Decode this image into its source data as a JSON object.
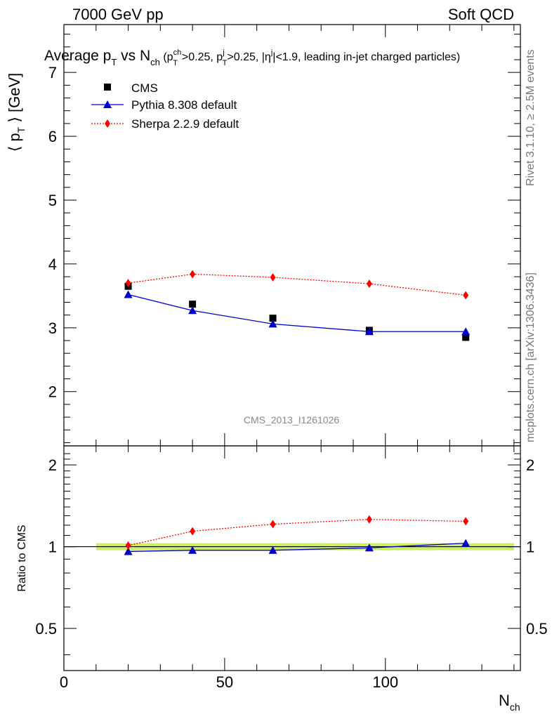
{
  "header": {
    "left": "7000 GeV pp",
    "right": "Soft QCD"
  },
  "side_labels": {
    "rivet": "Rivet 3.1.10, ≥ 2.5M events",
    "mcplots": "mcplots.cern.ch [arXiv:1306.3436]"
  },
  "chart_data": [
    {
      "type": "scatter",
      "title": "Average pT vs Nch (pTch>0.25, pTj>0.25, |ηj|<1.9, leading in-jet charged particles)",
      "title_parts": {
        "main": "Average p",
        "sub_t": "T",
        "vs": " vs N",
        "sub_ch": "ch",
        "cond_a": " (p",
        "cond_sup_ch": "ch",
        "cond_sub_t1": "T",
        "cond_b": ">0.25, p",
        "cond_sup_j": "j",
        "cond_sub_t2": "T",
        "cond_c": ">0.25, |η",
        "cond_sup_j2": "j",
        "cond_d": "|<1.9, leading in-jet charged particles)"
      },
      "ylabel": "⟨ pT ⟩ [GeV]",
      "ylabel_parts": {
        "a": "⟨ p",
        "sub": "T",
        "b": " ⟩ [GeV]"
      },
      "xlabel": "Nch",
      "xlabel_parts": {
        "a": "N",
        "sub": "ch"
      },
      "watermark": "CMS_2013_I1261026",
      "xlim": [
        0,
        142
      ],
      "ylim": [
        1.15,
        7.75
      ],
      "x_ticks": [
        0,
        50,
        100
      ],
      "y_ticks": [
        2,
        3,
        4,
        5,
        6,
        7
      ],
      "legend_position": "top-left",
      "x": [
        20,
        40,
        65,
        95,
        125
      ],
      "series": [
        {
          "name": "CMS",
          "color": "#000000",
          "marker": "square",
          "line": "none",
          "values": [
            3.65,
            3.37,
            3.15,
            2.96,
            2.85
          ]
        },
        {
          "name": "Pythia 8.308 default",
          "color": "#0000cc",
          "marker": "triangle",
          "line": "solid",
          "values": [
            3.52,
            3.27,
            3.06,
            2.94,
            2.94
          ]
        },
        {
          "name": "Sherpa 2.2.9 default",
          "color": "#ff0000",
          "marker": "diamond",
          "line": "dotted",
          "values": [
            3.7,
            3.84,
            3.79,
            3.69,
            3.51
          ]
        }
      ]
    },
    {
      "type": "line",
      "ylabel": "Ratio to CMS",
      "xlim": [
        0,
        142
      ],
      "ylim": [
        0.35,
        2.35
      ],
      "y_ticks": [
        0.5,
        1,
        2
      ],
      "y_tick_labels": [
        "0.5",
        "1",
        "2"
      ],
      "x_tick_labels": [
        "0",
        "50",
        "100"
      ],
      "band_color": "#ccee66",
      "band": {
        "x_range": [
          10,
          140
        ],
        "low": 0.97,
        "high": 1.03
      },
      "x": [
        20,
        40,
        65,
        95,
        125
      ],
      "series": [
        {
          "name": "Pythia 8.308 default",
          "color": "#0000cc",
          "marker": "triangle",
          "line": "solid",
          "values": [
            0.96,
            0.97,
            0.97,
            0.99,
            1.03
          ]
        },
        {
          "name": "Sherpa 2.2.9 default",
          "color": "#ff0000",
          "marker": "diamond",
          "line": "dotted",
          "values": [
            1.01,
            1.14,
            1.21,
            1.26,
            1.24
          ]
        }
      ]
    }
  ]
}
